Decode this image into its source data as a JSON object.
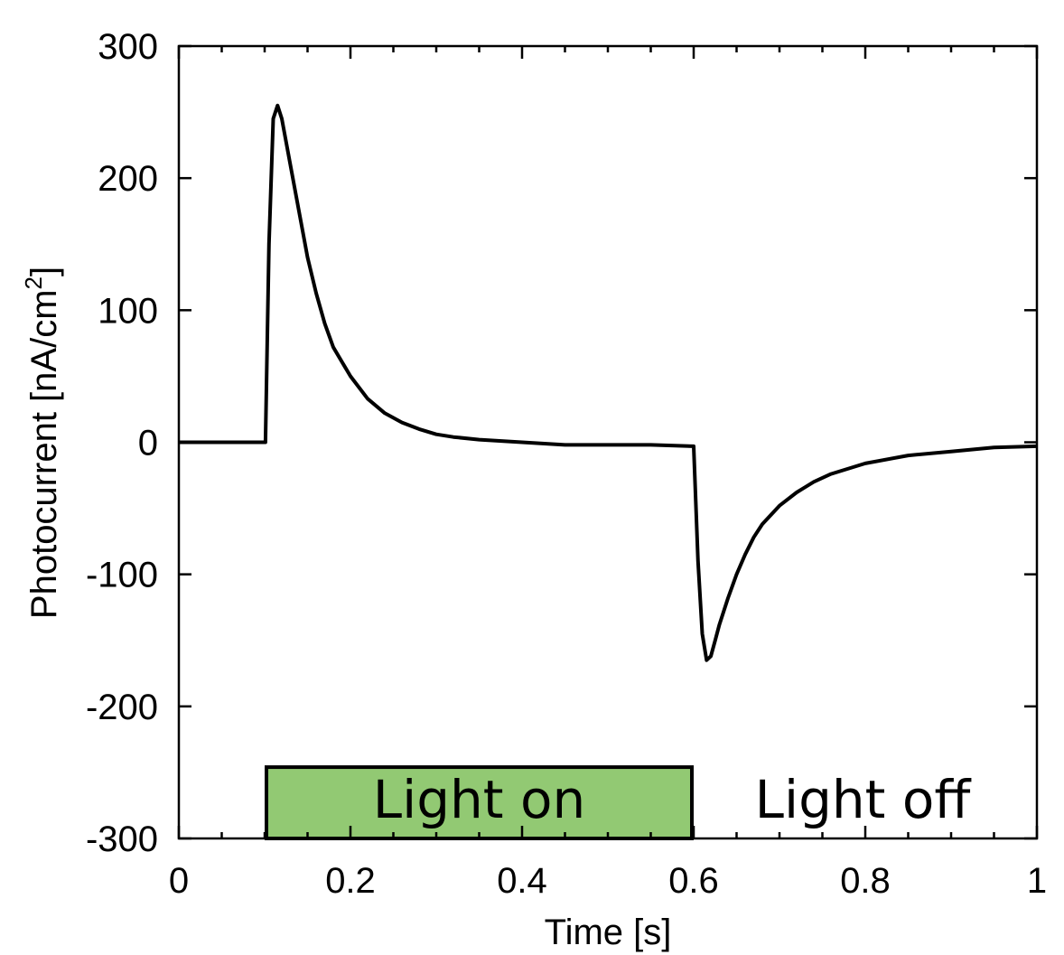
{
  "chart_data": {
    "type": "line",
    "title": "",
    "xlabel": "Time [s]",
    "ylabel": "Photocurrent [nA/cm",
    "ylabel_superscript": "2",
    "ylabel_close": "]",
    "xlim": [
      0,
      1
    ],
    "ylim": [
      -300,
      300
    ],
    "x_ticks": [
      "0",
      "0.2",
      "0.4",
      "0.6",
      "0.8",
      "1"
    ],
    "y_ticks": [
      "300",
      "200",
      "100",
      "0",
      "-100",
      "-200",
      "-300"
    ],
    "grid": false,
    "legend": "none",
    "line_color": "#000000",
    "series": [
      {
        "x": [
          0.0,
          0.05,
          0.09,
          0.1,
          0.101,
          0.105,
          0.11,
          0.115,
          0.12,
          0.13,
          0.14,
          0.15,
          0.16,
          0.17,
          0.18,
          0.2,
          0.22,
          0.24,
          0.26,
          0.28,
          0.3,
          0.32,
          0.35,
          0.4,
          0.45,
          0.5,
          0.55,
          0.6,
          0.6,
          0.605,
          0.61,
          0.615,
          0.62,
          0.625,
          0.63,
          0.64,
          0.65,
          0.66,
          0.67,
          0.68,
          0.7,
          0.72,
          0.74,
          0.76,
          0.8,
          0.85,
          0.9,
          0.95,
          1.0
        ],
        "y": [
          0,
          0,
          0,
          0,
          0,
          150,
          245,
          255,
          245,
          210,
          175,
          140,
          113,
          90,
          72,
          50,
          33,
          22,
          15,
          10,
          6,
          4,
          2,
          0,
          -2,
          -2,
          -2,
          -3,
          -3,
          -90,
          -145,
          -165,
          -162,
          -150,
          -138,
          -118,
          -100,
          -85,
          -72,
          -62,
          -48,
          -38,
          -30,
          -24,
          -16,
          -10,
          -7,
          -4,
          -3
        ]
      }
    ],
    "annotations": {
      "light_on": {
        "text": "Light on",
        "x_start": 0.1,
        "x_end": 0.6,
        "y_bottom": -300,
        "y_top": -246,
        "fill": "#92c973"
      },
      "light_off": {
        "text": "Light off"
      }
    }
  }
}
